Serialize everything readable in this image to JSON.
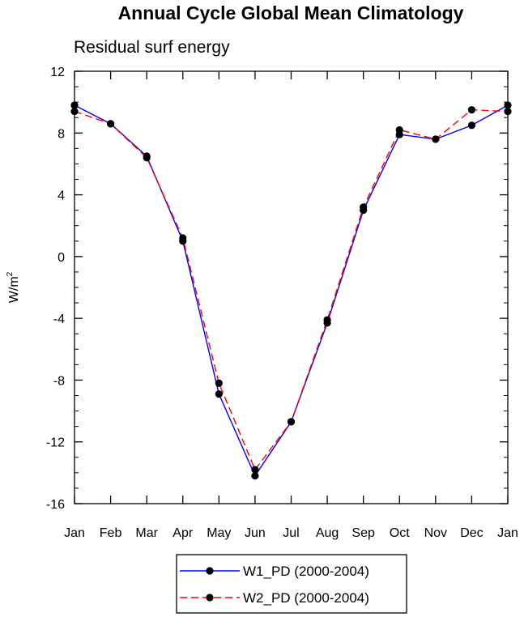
{
  "chart_data": {
    "type": "line",
    "title": "Annual Cycle Global Mean Climatology",
    "subtitle": "Residual surf energy",
    "ylabel": "W/m",
    "ylabel_sup": "2",
    "xlabel": "",
    "categories": [
      "Jan",
      "Feb",
      "Mar",
      "Apr",
      "May",
      "Jun",
      "Jul",
      "Aug",
      "Sep",
      "Oct",
      "Nov",
      "Dec",
      "Jan"
    ],
    "ylim": [
      -16,
      12
    ],
    "yticks": [
      12,
      8,
      4,
      0,
      -4,
      -8,
      -12,
      -16
    ],
    "ytick_labels": [
      "12",
      "8",
      "4",
      "0",
      "-4",
      "-8",
      "-12",
      "-16"
    ],
    "grid": false,
    "legend_position": "bottom-center",
    "series": [
      {
        "name": "W1_PD (2000-2004)",
        "color": "#0000ff",
        "dash": "solid",
        "values": [
          9.8,
          8.6,
          6.5,
          1.0,
          -8.9,
          -14.2,
          -10.7,
          -4.3,
          3.0,
          7.9,
          7.6,
          8.5,
          9.8
        ]
      },
      {
        "name": "W2_PD (2000-2004)",
        "color": "#ff0000",
        "dash": "dashed",
        "values": [
          9.4,
          8.6,
          6.4,
          1.2,
          -8.2,
          -13.8,
          -10.7,
          -4.1,
          3.2,
          8.2,
          7.6,
          9.5,
          9.4
        ]
      }
    ]
  }
}
